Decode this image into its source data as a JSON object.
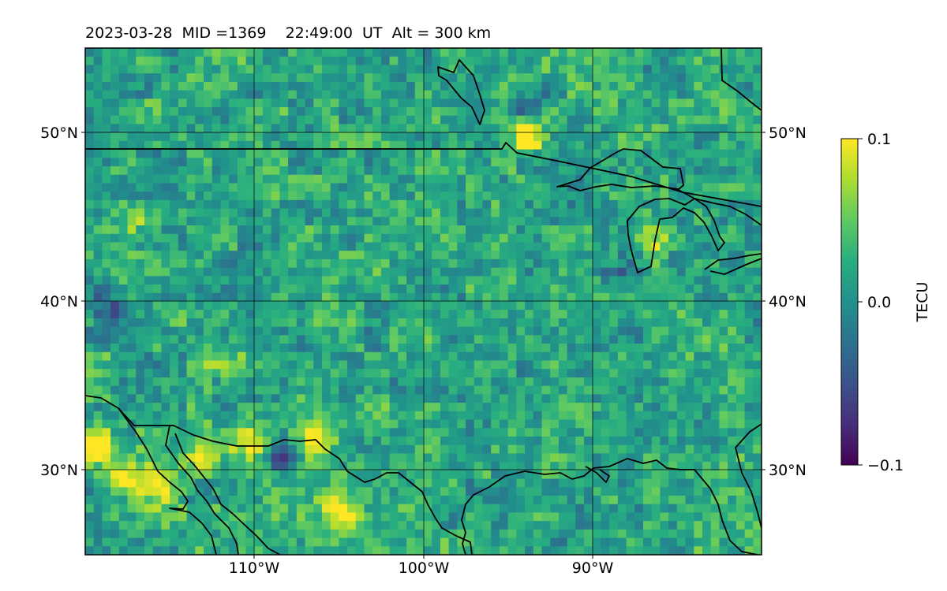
{
  "chart_data": {
    "type": "heatmap",
    "title": "2023-03-28  MID =1369    22:49:00  UT  Alt = 300 km",
    "x_ticks": [
      {
        "value": -110,
        "label": "110°W"
      },
      {
        "value": -100,
        "label": "100°W"
      },
      {
        "value": -90,
        "label": "90°W"
      }
    ],
    "y_ticks": [
      {
        "value": 30,
        "label": "30°N"
      },
      {
        "value": 40,
        "label": "40°N"
      },
      {
        "value": 50,
        "label": "50°N"
      }
    ],
    "xlim": [
      -120,
      -80
    ],
    "ylim": [
      25,
      55
    ],
    "grid": true,
    "colorbar": {
      "label": "TECU",
      "colormap": "viridis",
      "range": [
        -0.1,
        0.1
      ],
      "ticks": [
        {
          "value": 0.1,
          "label": "0.1"
        },
        {
          "value": 0.0,
          "label": "0.0"
        },
        {
          "value": -0.1,
          "label": "−0.1"
        }
      ]
    },
    "hotspots": [
      {
        "lon": -117.5,
        "lat": 29.5,
        "value": 0.1
      },
      {
        "lon": -119.5,
        "lat": 31.5,
        "value": 0.1
      },
      {
        "lon": -115.5,
        "lat": 29.0,
        "value": 0.09
      },
      {
        "lon": -105.0,
        "lat": 27.5,
        "value": 0.1
      },
      {
        "lon": -106.5,
        "lat": 32.0,
        "value": 0.08
      },
      {
        "lon": -110.0,
        "lat": 31.5,
        "value": 0.08
      },
      {
        "lon": -113.0,
        "lat": 31.0,
        "value": 0.06
      },
      {
        "lon": -112.0,
        "lat": 36.5,
        "value": 0.05
      },
      {
        "lon": -102.5,
        "lat": 33.5,
        "value": 0.04
      },
      {
        "lon": -117.0,
        "lat": 44.5,
        "value": 0.04
      },
      {
        "lon": -86.5,
        "lat": 43.5,
        "value": 0.05
      },
      {
        "lon": -94.0,
        "lat": 50.0,
        "value": 0.09
      },
      {
        "lon": -111.5,
        "lat": 54.5,
        "value": 0.04
      },
      {
        "lon": -108.5,
        "lat": 31.0,
        "value": -0.1
      },
      {
        "lon": -94.0,
        "lat": 51.5,
        "value": -0.07
      },
      {
        "lon": -118.5,
        "lat": 39.5,
        "value": -0.07
      },
      {
        "lon": -89.0,
        "lat": 41.5,
        "value": -0.04
      },
      {
        "lon": -98.0,
        "lat": 52.5,
        "value": -0.04
      }
    ]
  }
}
